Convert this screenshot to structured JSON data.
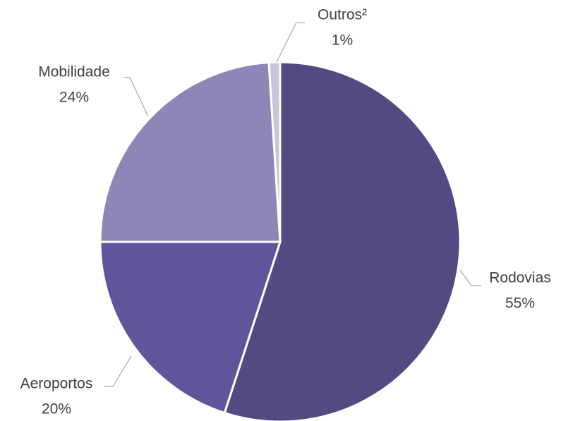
{
  "chart_data": {
    "type": "pie",
    "categories": [
      "Rodovias",
      "Aeroportos",
      "Mobilidade",
      "Outros²"
    ],
    "values": [
      55,
      20,
      24,
      1
    ],
    "value_labels": [
      "55%",
      "20%",
      "24%",
      "1%"
    ],
    "colors": [
      "#524a80",
      "#62549a",
      "#8d86b6",
      "#c8c4dc"
    ]
  }
}
